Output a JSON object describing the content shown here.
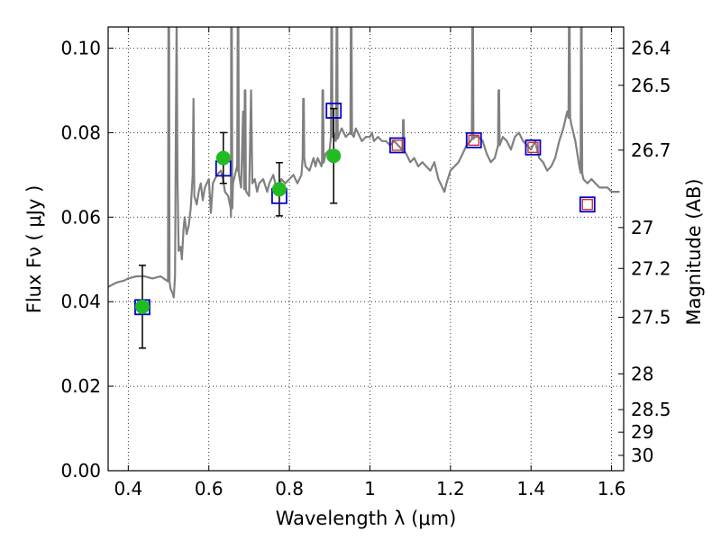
{
  "chart_data": {
    "type": "scatter",
    "xlabel": "Wavelength  λ (μm)",
    "ylabel": "Flux  Fν  ( μJy )",
    "y2label": "Magnitude (AB)",
    "xlim": [
      0.35,
      1.63
    ],
    "ylim": [
      0.0,
      0.105
    ],
    "grid": true,
    "xticks": [
      {
        "v": 0.4,
        "label": "0.4"
      },
      {
        "v": 0.6,
        "label": "0.6"
      },
      {
        "v": 0.8,
        "label": "0.8"
      },
      {
        "v": 1.0,
        "label": "1"
      },
      {
        "v": 1.2,
        "label": "1.2"
      },
      {
        "v": 1.4,
        "label": "1.4"
      },
      {
        "v": 1.6,
        "label": "1.6"
      }
    ],
    "yticks": [
      {
        "v": 0.0,
        "label": "0.00"
      },
      {
        "v": 0.02,
        "label": "0.02"
      },
      {
        "v": 0.04,
        "label": "0.04"
      },
      {
        "v": 0.06,
        "label": "0.06"
      },
      {
        "v": 0.08,
        "label": "0.08"
      },
      {
        "v": 0.1,
        "label": "0.10"
      }
    ],
    "y2ticks": [
      {
        "mag": 26.4,
        "label": "26.4"
      },
      {
        "mag": 26.5,
        "label": "26.5"
      },
      {
        "mag": 26.7,
        "label": "26.7"
      },
      {
        "mag": 27,
        "label": "27"
      },
      {
        "mag": 27.2,
        "label": "27.2"
      },
      {
        "mag": 27.5,
        "label": "27.5"
      },
      {
        "mag": 28,
        "label": "28"
      },
      {
        "mag": 28.5,
        "label": "28.5"
      },
      {
        "mag": 29,
        "label": "29"
      },
      {
        "mag": 30,
        "label": "30"
      }
    ],
    "model_spectrum": {
      "color": "#808080",
      "points": [
        [
          0.35,
          0.0435
        ],
        [
          0.37,
          0.0445
        ],
        [
          0.39,
          0.045
        ],
        [
          0.4,
          0.0455
        ],
        [
          0.42,
          0.046
        ],
        [
          0.44,
          0.046
        ],
        [
          0.46,
          0.0455
        ],
        [
          0.48,
          0.046
        ],
        [
          0.5,
          0.045
        ],
        [
          0.505,
          0.043
        ],
        [
          0.51,
          0.042
        ],
        [
          0.513,
          0.041
        ],
        [
          0.516,
          0.046
        ],
        [
          0.518,
          0.08
        ],
        [
          0.52,
          0.107
        ],
        [
          0.522,
          0.07
        ],
        [
          0.525,
          0.052
        ],
        [
          0.53,
          0.053
        ],
        [
          0.533,
          0.05
        ],
        [
          0.537,
          0.057
        ],
        [
          0.54,
          0.06
        ],
        [
          0.545,
          0.056
        ],
        [
          0.55,
          0.058
        ],
        [
          0.555,
          0.062
        ],
        [
          0.56,
          0.07
        ],
        [
          0.562,
          0.088
        ],
        [
          0.564,
          0.065
        ],
        [
          0.57,
          0.063
        ],
        [
          0.575,
          0.066
        ],
        [
          0.58,
          0.068
        ],
        [
          0.585,
          0.064
        ],
        [
          0.59,
          0.067
        ],
        [
          0.6,
          0.069
        ],
        [
          0.605,
          0.061
        ],
        [
          0.61,
          0.068
        ],
        [
          0.62,
          0.07
        ],
        [
          0.63,
          0.071
        ],
        [
          0.635,
          0.069
        ],
        [
          0.64,
          0.066
        ],
        [
          0.648,
          0.065
        ],
        [
          0.655,
          0.06
        ],
        [
          0.66,
          0.068
        ],
        [
          0.665,
          0.07
        ],
        [
          0.67,
          0.072
        ],
        [
          0.675,
          0.07
        ],
        [
          0.68,
          0.067
        ],
        [
          0.685,
          0.085
        ],
        [
          0.688,
          0.067
        ],
        [
          0.693,
          0.066
        ],
        [
          0.7,
          0.065
        ],
        [
          0.705,
          0.09
        ],
        [
          0.708,
          0.068
        ],
        [
          0.714,
          0.069
        ],
        [
          0.72,
          0.066
        ],
        [
          0.725,
          0.068
        ],
        [
          0.735,
          0.069
        ],
        [
          0.745,
          0.066
        ],
        [
          0.75,
          0.068
        ],
        [
          0.76,
          0.07
        ],
        [
          0.77,
          0.066
        ],
        [
          0.78,
          0.069
        ],
        [
          0.79,
          0.068
        ],
        [
          0.8,
          0.069
        ],
        [
          0.81,
          0.07
        ],
        [
          0.82,
          0.068
        ],
        [
          0.83,
          0.07
        ],
        [
          0.835,
          0.074
        ],
        [
          0.84,
          0.072
        ],
        [
          0.85,
          0.071
        ],
        [
          0.86,
          0.074
        ],
        [
          0.865,
          0.072
        ],
        [
          0.87,
          0.074
        ],
        [
          0.88,
          0.072
        ],
        [
          0.89,
          0.075
        ],
        [
          0.9,
          0.076
        ],
        [
          0.905,
          0.079
        ],
        [
          0.91,
          0.08
        ],
        [
          0.915,
          0.078
        ],
        [
          0.92,
          0.079
        ],
        [
          0.925,
          0.08
        ],
        [
          0.93,
          0.081
        ],
        [
          0.935,
          0.08
        ],
        [
          0.94,
          0.079
        ],
        [
          0.95,
          0.08
        ],
        [
          0.96,
          0.079
        ],
        [
          0.965,
          0.081
        ],
        [
          0.97,
          0.08
        ],
        [
          0.98,
          0.078
        ],
        [
          0.99,
          0.079
        ],
        [
          1.0,
          0.079
        ],
        [
          1.005,
          0.08
        ],
        [
          1.01,
          0.078
        ],
        [
          1.02,
          0.079
        ],
        [
          1.03,
          0.078
        ],
        [
          1.04,
          0.078
        ],
        [
          1.05,
          0.077
        ],
        [
          1.06,
          0.078
        ],
        [
          1.07,
          0.077
        ],
        [
          1.08,
          0.076
        ],
        [
          1.09,
          0.075
        ],
        [
          1.1,
          0.073
        ],
        [
          1.11,
          0.074
        ],
        [
          1.12,
          0.072
        ],
        [
          1.13,
          0.073
        ],
        [
          1.14,
          0.072
        ],
        [
          1.15,
          0.071
        ],
        [
          1.16,
          0.073
        ],
        [
          1.17,
          0.069
        ],
        [
          1.18,
          0.067
        ],
        [
          1.185,
          0.066
        ],
        [
          1.19,
          0.068
        ],
        [
          1.2,
          0.071
        ],
        [
          1.21,
          0.072
        ],
        [
          1.22,
          0.073
        ],
        [
          1.23,
          0.075
        ],
        [
          1.24,
          0.077
        ],
        [
          1.25,
          0.078
        ],
        [
          1.26,
          0.079
        ],
        [
          1.27,
          0.079
        ],
        [
          1.28,
          0.078
        ],
        [
          1.29,
          0.075
        ],
        [
          1.3,
          0.073
        ],
        [
          1.31,
          0.074
        ],
        [
          1.32,
          0.077
        ],
        [
          1.33,
          0.079
        ],
        [
          1.34,
          0.078
        ],
        [
          1.35,
          0.076
        ],
        [
          1.36,
          0.079
        ],
        [
          1.37,
          0.08
        ],
        [
          1.38,
          0.078
        ],
        [
          1.39,
          0.077
        ],
        [
          1.4,
          0.076
        ],
        [
          1.41,
          0.078
        ],
        [
          1.42,
          0.074
        ],
        [
          1.43,
          0.073
        ],
        [
          1.44,
          0.071
        ],
        [
          1.45,
          0.072
        ],
        [
          1.46,
          0.074
        ],
        [
          1.47,
          0.078
        ],
        [
          1.48,
          0.081
        ],
        [
          1.49,
          0.085
        ],
        [
          1.5,
          0.082
        ],
        [
          1.51,
          0.078
        ],
        [
          1.52,
          0.072
        ],
        [
          1.53,
          0.069
        ],
        [
          1.54,
          0.068
        ],
        [
          1.55,
          0.069
        ],
        [
          1.56,
          0.068
        ],
        [
          1.57,
          0.067
        ],
        [
          1.58,
          0.067
        ],
        [
          1.59,
          0.067
        ],
        [
          1.6,
          0.066
        ],
        [
          1.61,
          0.066
        ],
        [
          1.62,
          0.066
        ]
      ],
      "emission_lines": [
        {
          "x": 0.5005,
          "peak": 0.107
        },
        {
          "x": 0.6563,
          "peak": 0.107
        },
        {
          "x": 0.6725,
          "peak": 0.107
        },
        {
          "x": 0.69,
          "peak": 0.09
        },
        {
          "x": 0.835,
          "peak": 0.088
        },
        {
          "x": 0.883,
          "peak": 0.09
        },
        {
          "x": 0.905,
          "peak": 0.107
        },
        {
          "x": 0.918,
          "peak": 0.107
        },
        {
          "x": 0.9535,
          "peak": 0.107
        },
        {
          "x": 1.083,
          "peak": 0.083
        },
        {
          "x": 1.255,
          "peak": 0.107
        },
        {
          "x": 1.32,
          "peak": 0.09
        },
        {
          "x": 1.495,
          "peak": 0.107
        },
        {
          "x": 1.525,
          "peak": 0.107
        }
      ]
    },
    "measured_flux": {
      "color": "#22bb22",
      "points": [
        {
          "x": 0.435,
          "y": 0.0388,
          "err": 0.0098
        },
        {
          "x": 0.636,
          "y": 0.074,
          "err": 0.006
        },
        {
          "x": 0.775,
          "y": 0.0666,
          "err": 0.0063
        },
        {
          "x": 0.91,
          "y": 0.0745,
          "err": 0.0112
        }
      ]
    },
    "model_photometry_blue": {
      "color": "#0000cc",
      "points": [
        {
          "x": 0.435,
          "y": 0.0387
        },
        {
          "x": 0.636,
          "y": 0.0715
        },
        {
          "x": 0.775,
          "y": 0.065
        },
        {
          "x": 0.91,
          "y": 0.0852
        },
        {
          "x": 1.068,
          "y": 0.077
        },
        {
          "x": 1.258,
          "y": 0.0782
        },
        {
          "x": 1.405,
          "y": 0.0765
        },
        {
          "x": 1.54,
          "y": 0.063
        }
      ]
    },
    "model_photometry_red": {
      "color": "#cc3333",
      "points": [
        {
          "x": 1.068,
          "y": 0.077
        },
        {
          "x": 1.258,
          "y": 0.0782
        },
        {
          "x": 1.405,
          "y": 0.0765
        },
        {
          "x": 1.54,
          "y": 0.063
        }
      ]
    }
  }
}
